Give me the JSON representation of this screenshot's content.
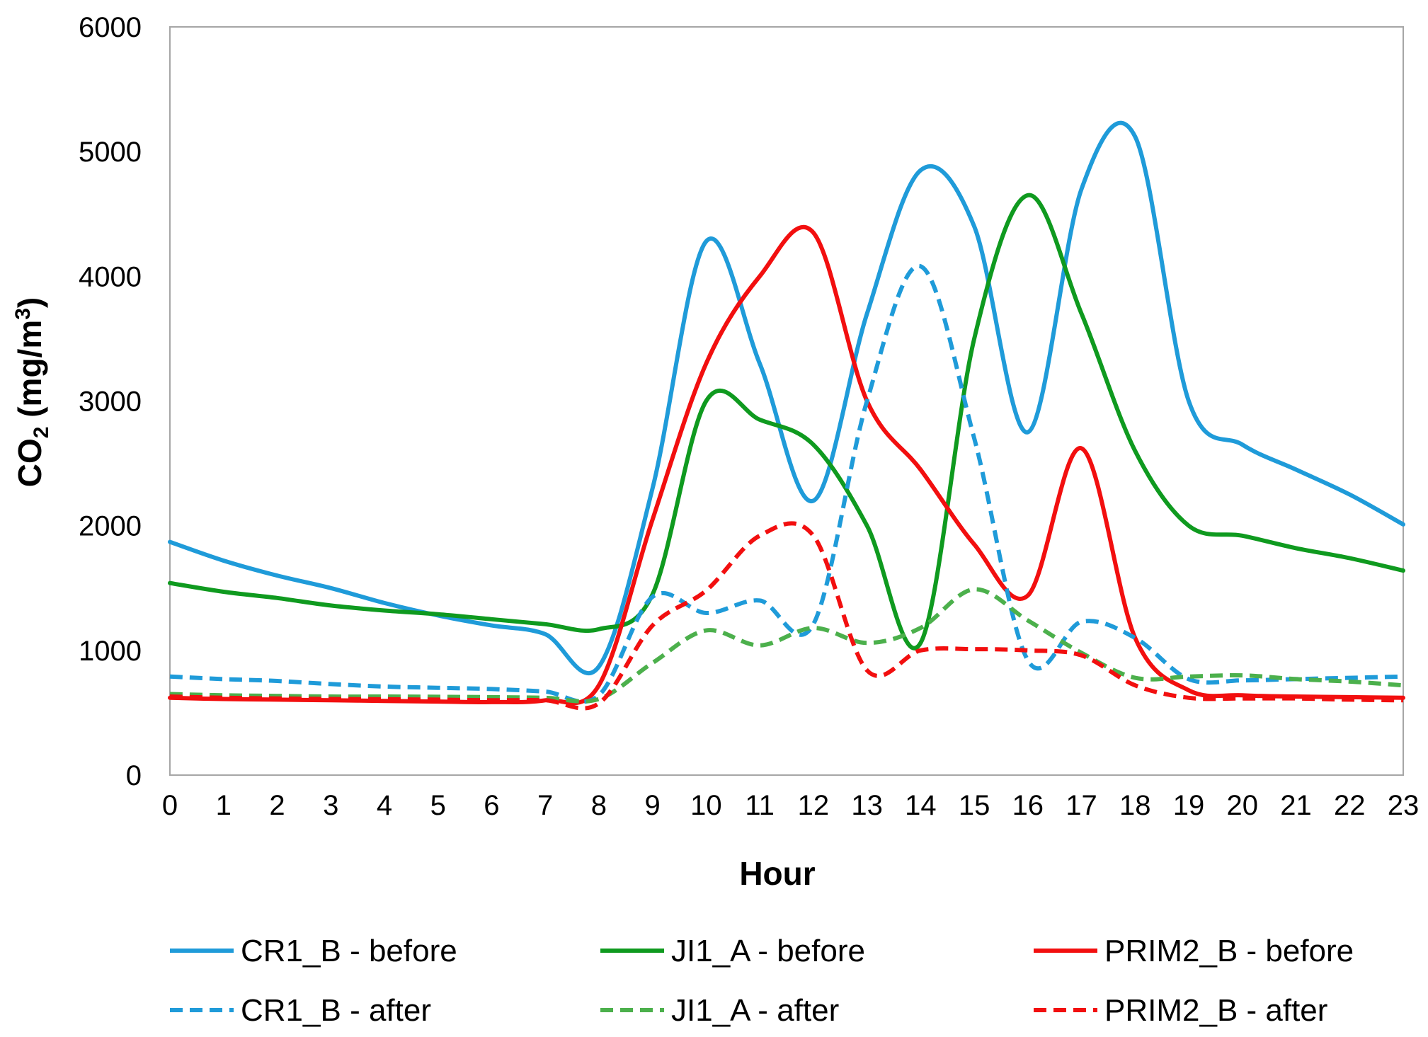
{
  "chart_data": {
    "type": "line",
    "title": "",
    "xlabel": "Hour",
    "ylabel": {
      "main": "CO",
      "sub": "2",
      "unit_prefix": " (mg/m",
      "sup": "3",
      "unit_suffix": ")"
    },
    "x": [
      0,
      1,
      2,
      3,
      4,
      5,
      6,
      7,
      8,
      9,
      10,
      11,
      12,
      13,
      14,
      15,
      16,
      17,
      18,
      19,
      20,
      21,
      22,
      23
    ],
    "x_tick_labels": [
      "0",
      "1",
      "2",
      "3",
      "4",
      "5",
      "6",
      "7",
      "8",
      "9",
      "10",
      "11",
      "12",
      "13",
      "14",
      "15",
      "16",
      "17",
      "18",
      "19",
      "20",
      "21",
      "22",
      "23"
    ],
    "ylim": [
      0,
      6000
    ],
    "y_ticks": [
      0,
      1000,
      2000,
      3000,
      4000,
      5000,
      6000
    ],
    "y_tick_labels": [
      "0",
      "1000",
      "2000",
      "3000",
      "4000",
      "5000",
      "6000"
    ],
    "grid": false,
    "legend_position": "bottom",
    "series": [
      {
        "name": "CR1_B - before",
        "color": "#1F9BD9",
        "style": "solid",
        "values": [
          1870,
          1720,
          1600,
          1500,
          1380,
          1280,
          1200,
          1130,
          870,
          2300,
          4280,
          3300,
          2200,
          3700,
          4850,
          4400,
          2750,
          4700,
          5120,
          3000,
          2650,
          2450,
          2250,
          2010
        ]
      },
      {
        "name": "JI1_A - before",
        "color": "#0F9A1F",
        "style": "solid",
        "values": [
          1540,
          1470,
          1420,
          1360,
          1320,
          1290,
          1250,
          1210,
          1170,
          1450,
          3000,
          2850,
          2650,
          2000,
          1060,
          3500,
          4650,
          3700,
          2600,
          2000,
          1920,
          1820,
          1740,
          1640
        ]
      },
      {
        "name": "PRIM2_B - before",
        "color": "#F20F0F",
        "style": "solid",
        "values": [
          620,
          610,
          605,
          600,
          595,
          590,
          585,
          600,
          720,
          2050,
          3300,
          4000,
          4350,
          3000,
          2450,
          1850,
          1440,
          2620,
          1100,
          680,
          640,
          630,
          625,
          620
        ]
      },
      {
        "name": "CR1_B - after",
        "color": "#1F9BD9",
        "style": "dashed",
        "values": [
          790,
          770,
          755,
          730,
          710,
          700,
          690,
          670,
          640,
          1430,
          1300,
          1400,
          1210,
          3000,
          4080,
          2700,
          920,
          1230,
          1100,
          770,
          760,
          770,
          780,
          790
        ]
      },
      {
        "name": "JI1_A - after",
        "color": "#4CB04C",
        "style": "dashed",
        "values": [
          650,
          640,
          635,
          630,
          630,
          628,
          625,
          620,
          610,
          900,
          1160,
          1040,
          1180,
          1060,
          1180,
          1490,
          1240,
          980,
          780,
          790,
          800,
          770,
          750,
          720
        ]
      },
      {
        "name": "PRIM2_B - after",
        "color": "#F20F0F",
        "style": "dashed",
        "values": [
          630,
          620,
          615,
          610,
          608,
          605,
          600,
          600,
          575,
          1200,
          1480,
          1920,
          1920,
          840,
          1000,
          1010,
          1000,
          960,
          720,
          620,
          615,
          615,
          605,
          600
        ]
      }
    ]
  }
}
